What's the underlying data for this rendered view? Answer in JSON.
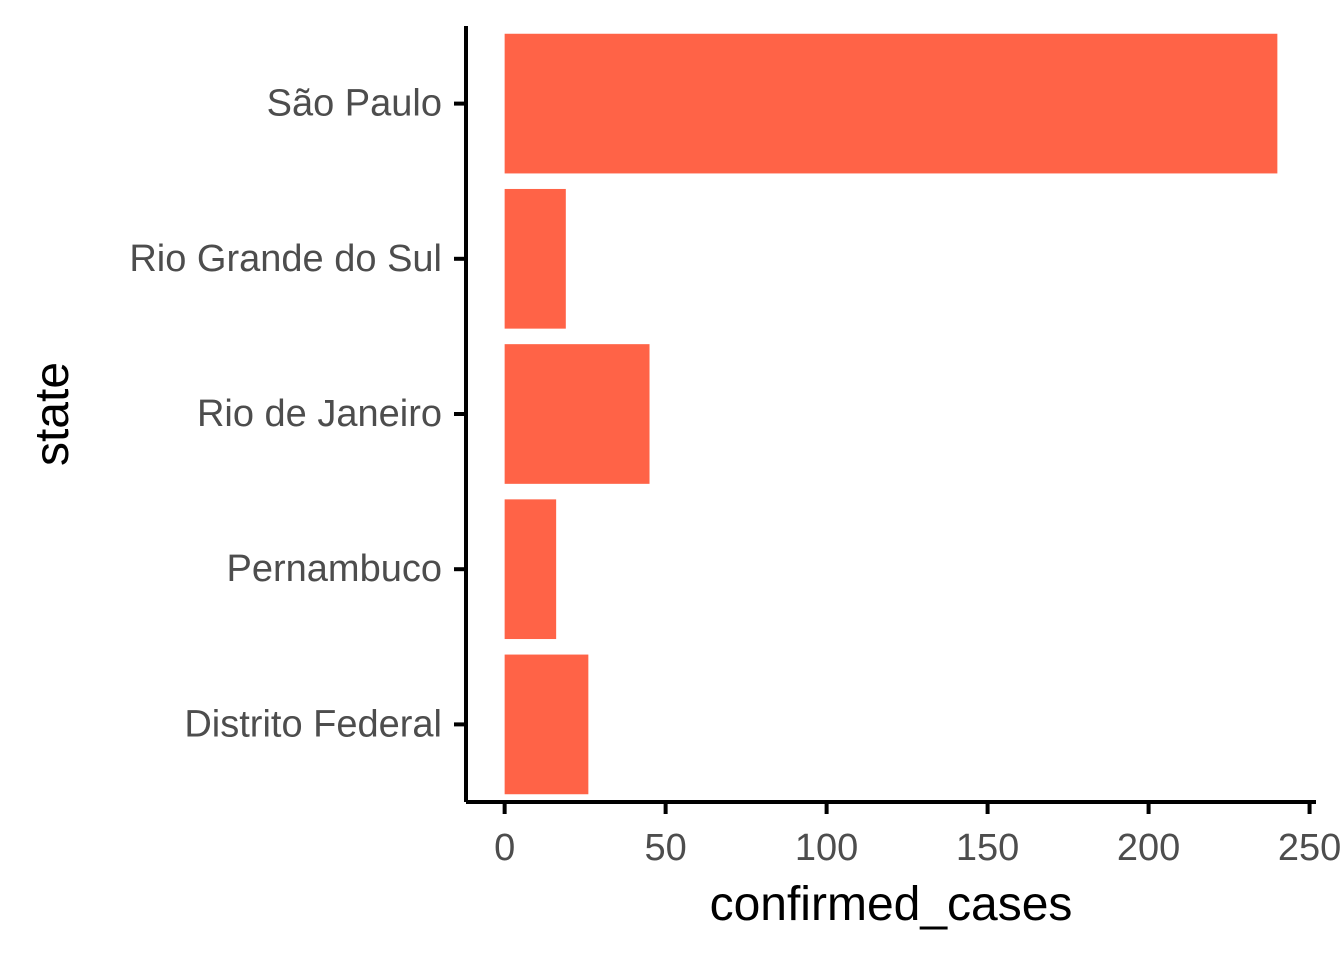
{
  "chart_data": {
    "type": "bar",
    "orientation": "horizontal",
    "categories": [
      "São Paulo",
      "Rio Grande do Sul",
      "Rio de Janeiro",
      "Pernambuco",
      "Distrito Federal"
    ],
    "values": [
      240,
      19,
      45,
      16,
      26
    ],
    "title": "",
    "xlabel": "confirmed_cases",
    "ylabel": "state",
    "xlim": [
      -12,
      252
    ],
    "xticks": [
      0,
      50,
      100,
      150,
      200,
      250
    ],
    "xtick_labels": [
      "0",
      "50",
      "100",
      "150",
      "200",
      "250"
    ],
    "grid": false,
    "legend": "none",
    "bar_color": "#ff6347"
  }
}
